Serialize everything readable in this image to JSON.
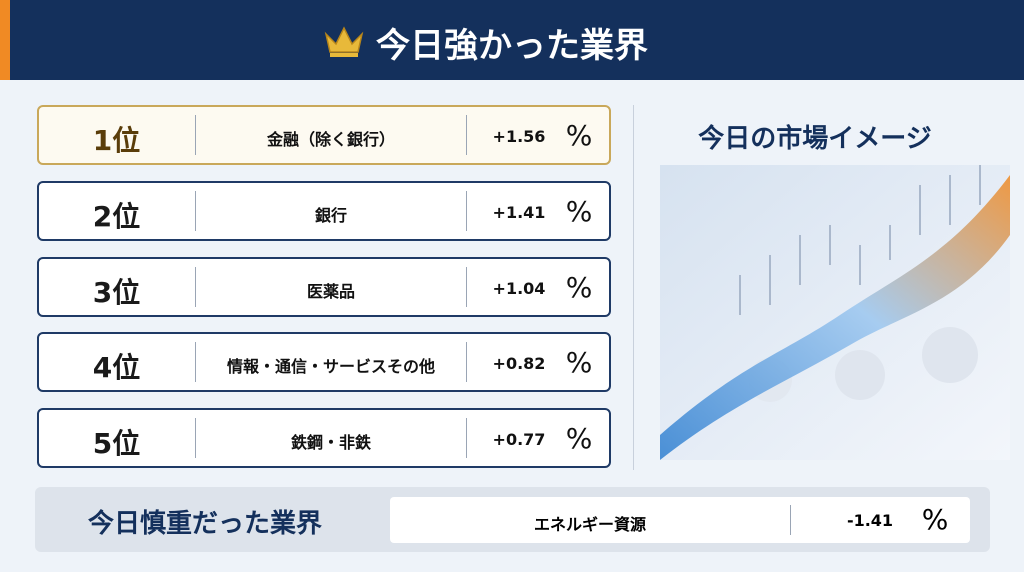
{
  "header": {
    "title": "今日強かった業界"
  },
  "ranking": [
    {
      "rank": "1位",
      "name": "金融（除く銀行）",
      "value": "+1.56",
      "unit": "%"
    },
    {
      "rank": "2位",
      "name": "銀行",
      "value": "+1.41",
      "unit": "%"
    },
    {
      "rank": "3位",
      "name": "医薬品",
      "value": "+1.04",
      "unit": "%"
    },
    {
      "rank": "4位",
      "name": "情報・通信・サービスその他",
      "value": "+0.82",
      "unit": "%"
    },
    {
      "rank": "5位",
      "name": "鉄鋼・非鉄",
      "value": "+0.77",
      "unit": "%"
    }
  ],
  "market": {
    "title": "今日の市場イメージ"
  },
  "weak": {
    "title": "今日慎重だった業界",
    "name": "エネルギー資源",
    "value": "-1.41",
    "unit": "%"
  }
}
